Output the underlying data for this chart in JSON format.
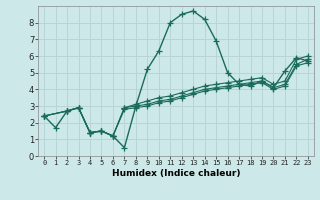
{
  "xlabel": "Humidex (Indice chaleur)",
  "bg_color": "#cce8e8",
  "grid_color": "#b8d4d4",
  "line_color": "#1a6b5a",
  "xlim": [
    -0.5,
    23.5
  ],
  "ylim": [
    0,
    9
  ],
  "xticks": [
    0,
    1,
    2,
    3,
    4,
    5,
    6,
    7,
    8,
    9,
    10,
    11,
    12,
    13,
    14,
    15,
    16,
    17,
    18,
    19,
    20,
    21,
    22,
    23
  ],
  "yticks": [
    0,
    1,
    2,
    3,
    4,
    5,
    6,
    7,
    8
  ],
  "series": [
    {
      "x": [
        0,
        1,
        2,
        3,
        4,
        5,
        6,
        7,
        8,
        9,
        10,
        11,
        12,
        13,
        14,
        15,
        16,
        17,
        18,
        19,
        20,
        21,
        22,
        23
      ],
      "y": [
        2.4,
        1.7,
        2.7,
        2.9,
        1.4,
        1.5,
        1.2,
        0.5,
        3.0,
        5.2,
        6.3,
        8.0,
        8.5,
        8.7,
        8.2,
        6.9,
        5.0,
        4.3,
        4.2,
        4.5,
        4.1,
        5.1,
        5.9,
        5.7
      ]
    },
    {
      "x": [
        0,
        2,
        3,
        4,
        5,
        6,
        7,
        8,
        9,
        10,
        11,
        12,
        13,
        14,
        15,
        16,
        17,
        18,
        19,
        20,
        21,
        22,
        23
      ],
      "y": [
        2.4,
        2.7,
        2.9,
        1.4,
        1.5,
        1.2,
        2.9,
        3.1,
        3.3,
        3.5,
        3.6,
        3.8,
        4.0,
        4.2,
        4.3,
        4.4,
        4.5,
        4.6,
        4.7,
        4.3,
        4.5,
        5.8,
        6.0
      ]
    },
    {
      "x": [
        0,
        2,
        3,
        4,
        5,
        6,
        7,
        8,
        9,
        10,
        11,
        12,
        13,
        14,
        15,
        16,
        17,
        18,
        19,
        20,
        21,
        22,
        23
      ],
      "y": [
        2.4,
        2.7,
        2.9,
        1.4,
        1.5,
        1.2,
        2.9,
        3.0,
        3.1,
        3.3,
        3.4,
        3.6,
        3.8,
        4.0,
        4.1,
        4.2,
        4.3,
        4.4,
        4.5,
        4.1,
        4.3,
        5.5,
        5.8
      ]
    },
    {
      "x": [
        0,
        2,
        3,
        4,
        5,
        6,
        7,
        8,
        9,
        10,
        11,
        12,
        13,
        14,
        15,
        16,
        17,
        18,
        19,
        20,
        21,
        22,
        23
      ],
      "y": [
        2.4,
        2.7,
        2.9,
        1.4,
        1.5,
        1.2,
        2.8,
        2.9,
        3.0,
        3.2,
        3.3,
        3.5,
        3.7,
        3.9,
        4.0,
        4.1,
        4.2,
        4.3,
        4.4,
        4.0,
        4.2,
        5.4,
        5.6
      ]
    }
  ]
}
